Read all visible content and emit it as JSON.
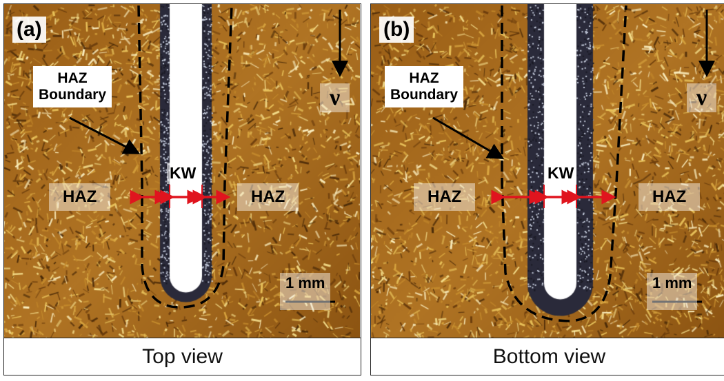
{
  "panels": [
    {
      "tag": "(a)",
      "caption": "Top view",
      "haz_boundary": [
        "HAZ",
        "Boundary"
      ],
      "haz_left": "HAZ",
      "haz_right": "HAZ",
      "kw": "KW",
      "velocity": "ν",
      "scale_bar": "1 mm"
    },
    {
      "tag": "(b)",
      "caption": "Bottom view",
      "haz_boundary": [
        "HAZ",
        "Boundary"
      ],
      "haz_left": "HAZ",
      "haz_right": "HAZ",
      "kw": "KW",
      "velocity": "ν",
      "scale_bar": "1 mm"
    }
  ],
  "colors": {
    "arrow": "#e0141e",
    "boundary": "#000000",
    "background": "#a86a1c"
  }
}
